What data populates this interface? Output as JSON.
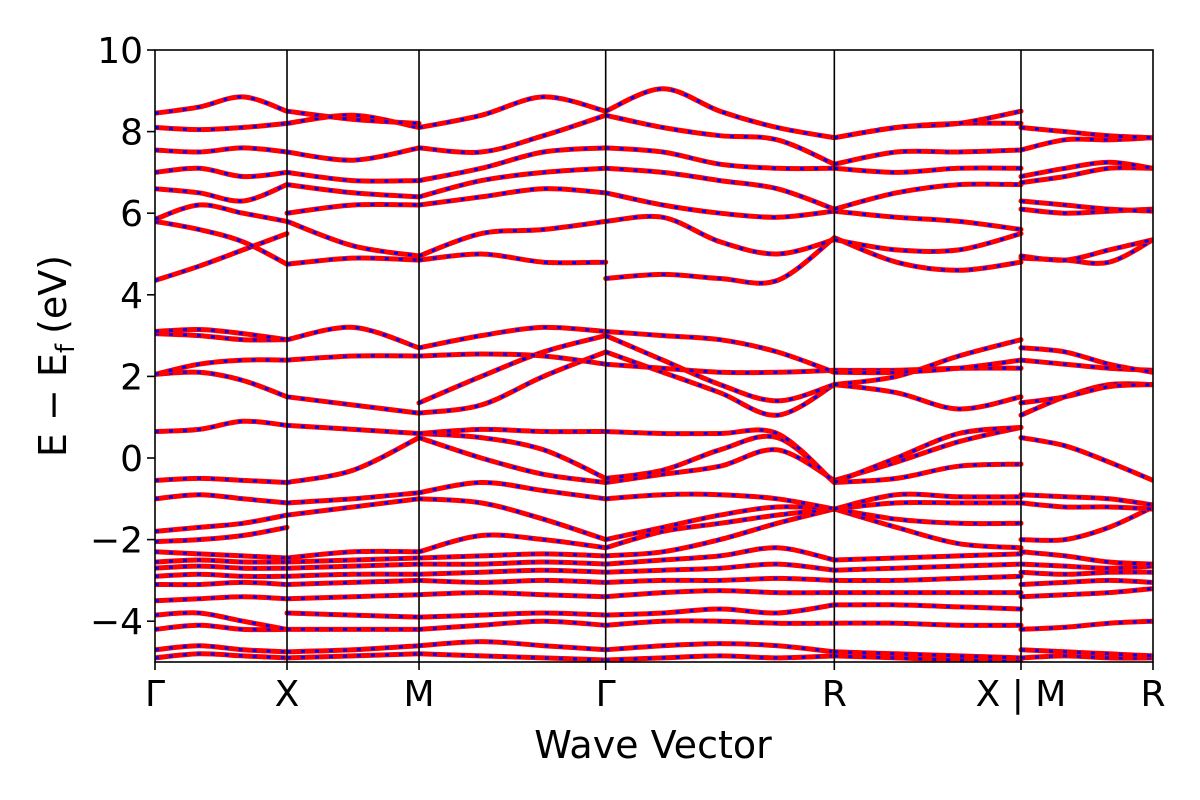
{
  "chart_data": {
    "type": "line",
    "xlabel": "Wave Vector",
    "ylabel_main": "E − E",
    "ylabel_sub": "f",
    "ylabel_unit": "(eV)",
    "ylim": [
      -5,
      10
    ],
    "yticks": [
      -4,
      -2,
      0,
      2,
      4,
      6,
      8,
      10
    ],
    "ytick_labels": [
      "−4",
      "−2",
      "0",
      "2",
      "4",
      "6",
      "8",
      "10"
    ],
    "grid": false,
    "kpoints": [
      {
        "label": "Γ",
        "x": 0.0
      },
      {
        "label": "X",
        "x": 0.5
      },
      {
        "label": "M",
        "x": 1.0
      },
      {
        "label": "Γ",
        "x": 1.707
      },
      {
        "label": "R",
        "x": 2.573
      },
      {
        "label": "X | M",
        "x": 3.28
      },
      {
        "label": "R",
        "x": 3.78
      }
    ],
    "x_range": [
      0,
      3.78
    ],
    "series_colors": {
      "red": "#ff0000",
      "blue": "#0000ff"
    },
    "segments": [
      {
        "x0": 0.0,
        "x1": 0.5,
        "bands": [
          [
            -4.9,
            -4.8,
            -4.85,
            -4.9
          ],
          [
            -4.7,
            -4.6,
            -4.7,
            -4.75
          ],
          [
            -4.2,
            -4.1,
            -4.2,
            -4.2
          ],
          [
            -3.85,
            -3.8,
            -4.0,
            -4.2
          ],
          [
            -3.5,
            -3.45,
            -3.4,
            -3.45
          ],
          [
            -3.1,
            -3.1,
            -3.05,
            -3.1
          ],
          [
            -2.9,
            -2.85,
            -2.9,
            -2.9
          ],
          [
            -2.7,
            -2.65,
            -2.7,
            -2.7
          ],
          [
            -2.55,
            -2.5,
            -2.55,
            -2.55
          ],
          [
            -2.3,
            -2.35,
            -2.4,
            -2.45
          ],
          [
            -2.05,
            -2.0,
            -1.9,
            -1.7
          ],
          [
            -1.8,
            -1.7,
            -1.6,
            -1.4
          ],
          [
            -1.0,
            -0.9,
            -1.0,
            -1.1
          ],
          [
            -0.55,
            -0.5,
            -0.55,
            -0.6
          ],
          [
            0.65,
            0.7,
            0.9,
            0.8
          ],
          [
            2.05,
            2.1,
            1.9,
            1.5
          ],
          [
            2.05,
            2.3,
            2.4,
            2.4
          ],
          [
            3.05,
            3.0,
            2.9,
            2.9
          ],
          [
            3.1,
            3.15,
            3.05,
            2.9
          ],
          [
            4.35,
            4.7,
            5.1,
            5.5
          ],
          [
            5.8,
            5.6,
            5.3,
            4.75
          ],
          [
            5.85,
            6.2,
            6.0,
            5.8
          ],
          [
            6.6,
            6.5,
            6.3,
            6.7
          ],
          [
            7.0,
            7.1,
            6.9,
            7.0
          ],
          [
            7.55,
            7.5,
            7.6,
            7.5
          ],
          [
            8.1,
            8.05,
            8.1,
            8.2
          ],
          [
            8.45,
            8.6,
            8.85,
            8.5
          ]
        ]
      },
      {
        "x0": 0.5,
        "x1": 1.0,
        "bands": [
          [
            -4.9,
            -4.85,
            -4.8
          ],
          [
            -4.75,
            -4.7,
            -4.6
          ],
          [
            -4.2,
            -4.2,
            -4.2
          ],
          [
            -3.8,
            -3.85,
            -3.9
          ],
          [
            -3.45,
            -3.4,
            -3.35
          ],
          [
            -3.1,
            -3.05,
            -3.0
          ],
          [
            -2.9,
            -2.85,
            -2.85
          ],
          [
            -2.7,
            -2.65,
            -2.6
          ],
          [
            -2.55,
            -2.5,
            -2.45
          ],
          [
            -2.45,
            -2.3,
            -2.3
          ],
          [
            -1.4,
            -1.2,
            -1.0
          ],
          [
            -1.1,
            -1.0,
            -0.85
          ],
          [
            -0.6,
            -0.3,
            0.5
          ],
          [
            0.8,
            0.7,
            0.6
          ],
          [
            1.5,
            1.3,
            1.1
          ],
          [
            2.4,
            2.5,
            2.5
          ],
          [
            2.9,
            3.2,
            2.7
          ],
          [
            4.75,
            4.9,
            4.85
          ],
          [
            5.8,
            5.2,
            4.95
          ],
          [
            6.0,
            6.2,
            6.2
          ],
          [
            6.7,
            6.5,
            6.4
          ],
          [
            7.0,
            6.8,
            6.8
          ],
          [
            7.5,
            7.3,
            7.6
          ],
          [
            8.2,
            8.4,
            8.1
          ],
          [
            8.5,
            8.3,
            8.2
          ]
        ]
      },
      {
        "x0": 1.0,
        "x1": 1.707,
        "bands": [
          [
            -4.8,
            -4.85,
            -4.9,
            -4.95
          ],
          [
            -4.6,
            -4.5,
            -4.6,
            -4.7
          ],
          [
            -4.2,
            -4.1,
            -4.0,
            -4.1
          ],
          [
            -3.9,
            -3.85,
            -3.8,
            -3.85
          ],
          [
            -3.35,
            -3.3,
            -3.35,
            -3.4
          ],
          [
            -3.0,
            -3.05,
            -3.0,
            -3.05
          ],
          [
            -2.85,
            -2.8,
            -2.75,
            -2.8
          ],
          [
            -2.6,
            -2.6,
            -2.55,
            -2.6
          ],
          [
            -2.45,
            -2.4,
            -2.35,
            -2.4
          ],
          [
            -2.3,
            -1.9,
            -2.0,
            -2.2
          ],
          [
            -1.0,
            -1.1,
            -1.5,
            -2.0
          ],
          [
            -0.85,
            -0.6,
            -0.8,
            -1.0
          ],
          [
            0.5,
            0.0,
            -0.4,
            -0.6
          ],
          [
            0.6,
            0.5,
            0.2,
            -0.5
          ],
          [
            0.6,
            0.7,
            0.65,
            0.65
          ],
          [
            1.1,
            1.3,
            2.0,
            2.6
          ],
          [
            1.35,
            2.0,
            2.6,
            3.0
          ],
          [
            2.5,
            2.55,
            2.5,
            2.3
          ],
          [
            2.7,
            3.0,
            3.2,
            3.1
          ],
          [
            4.85,
            5.0,
            4.8,
            4.8
          ],
          [
            4.95,
            5.5,
            5.6,
            5.8
          ],
          [
            6.2,
            6.4,
            6.6,
            6.5
          ],
          [
            6.4,
            6.8,
            7.0,
            7.1
          ],
          [
            6.8,
            7.1,
            7.5,
            7.6
          ],
          [
            7.6,
            7.5,
            7.9,
            8.4
          ],
          [
            8.1,
            8.4,
            8.85,
            8.5
          ]
        ]
      },
      {
        "x0": 1.707,
        "x1": 2.573,
        "bands": [
          [
            -4.95,
            -4.9,
            -4.85,
            -4.9,
            -4.85
          ],
          [
            -4.7,
            -4.6,
            -4.55,
            -4.6,
            -4.75
          ],
          [
            -4.1,
            -4.0,
            -4.0,
            -4.05,
            -4.05
          ],
          [
            -3.85,
            -3.8,
            -3.7,
            -3.8,
            -3.6
          ],
          [
            -3.4,
            -3.3,
            -3.25,
            -3.3,
            -3.3
          ],
          [
            -3.05,
            -3.0,
            -3.0,
            -2.95,
            -3.0
          ],
          [
            -2.8,
            -2.75,
            -2.7,
            -2.6,
            -2.75
          ],
          [
            -2.6,
            -2.5,
            -2.4,
            -2.2,
            -2.5
          ],
          [
            -2.4,
            -2.3,
            -2.0,
            -1.6,
            -1.25
          ],
          [
            -2.2,
            -1.8,
            -1.6,
            -1.4,
            -1.25
          ],
          [
            -2.0,
            -1.7,
            -1.4,
            -1.2,
            -1.25
          ],
          [
            -1.0,
            -0.9,
            -0.9,
            -1.0,
            -1.25
          ],
          [
            -0.6,
            -0.4,
            -0.2,
            0.2,
            -0.55
          ],
          [
            -0.5,
            -0.3,
            0.2,
            0.5,
            -0.6
          ],
          [
            0.65,
            0.6,
            0.6,
            0.6,
            -0.6
          ],
          [
            2.6,
            2.1,
            1.6,
            1.05,
            1.8
          ],
          [
            3.0,
            2.4,
            1.8,
            1.4,
            1.8
          ],
          [
            2.3,
            2.2,
            2.1,
            2.1,
            2.15
          ],
          [
            3.1,
            3.0,
            2.9,
            2.6,
            2.1
          ],
          [
            4.4,
            4.5,
            4.4,
            4.35,
            5.4
          ],
          [
            5.8,
            5.9,
            5.3,
            5.0,
            5.35
          ],
          [
            6.5,
            6.2,
            6.0,
            5.9,
            6.05
          ],
          [
            7.1,
            7.0,
            6.8,
            6.6,
            6.1
          ],
          [
            7.6,
            7.5,
            7.2,
            7.1,
            7.1
          ],
          [
            8.4,
            8.1,
            7.9,
            7.8,
            7.2
          ],
          [
            8.5,
            9.05,
            8.5,
            8.1,
            7.85
          ]
        ]
      },
      {
        "x0": 2.573,
        "x1": 3.28,
        "bands": [
          [
            -4.85,
            -4.9,
            -4.95,
            -4.95
          ],
          [
            -4.75,
            -4.8,
            -4.85,
            -4.9
          ],
          [
            -4.05,
            -4.05,
            -4.1,
            -4.1
          ],
          [
            -3.6,
            -3.6,
            -3.65,
            -3.7
          ],
          [
            -3.3,
            -3.3,
            -3.3,
            -3.3
          ],
          [
            -3.0,
            -3.0,
            -2.95,
            -2.9
          ],
          [
            -2.75,
            -2.7,
            -2.65,
            -2.6
          ],
          [
            -2.5,
            -2.45,
            -2.4,
            -2.35
          ],
          [
            -1.25,
            -1.7,
            -2.1,
            -2.2
          ],
          [
            -1.25,
            -1.5,
            -1.6,
            -1.6
          ],
          [
            -1.25,
            -1.1,
            -1.1,
            -1.1
          ],
          [
            -1.25,
            -0.9,
            -0.95,
            -0.95
          ],
          [
            -0.55,
            -0.1,
            0.4,
            0.75
          ],
          [
            -0.6,
            -0.5,
            -0.2,
            -0.15
          ],
          [
            -0.6,
            0.0,
            0.6,
            0.75
          ],
          [
            1.8,
            1.6,
            1.2,
            1.5
          ],
          [
            1.8,
            2.0,
            2.5,
            2.9
          ],
          [
            2.15,
            2.15,
            2.2,
            2.2
          ],
          [
            2.1,
            2.1,
            2.2,
            2.4
          ],
          [
            5.4,
            4.8,
            4.6,
            4.8
          ],
          [
            5.35,
            5.1,
            5.1,
            5.5
          ],
          [
            6.05,
            5.9,
            5.8,
            5.6
          ],
          [
            6.1,
            6.5,
            6.7,
            6.7
          ],
          [
            7.1,
            7.0,
            7.1,
            7.1
          ],
          [
            7.2,
            7.5,
            7.5,
            7.55
          ],
          [
            7.85,
            8.1,
            8.2,
            8.2
          ],
          [
            7.85,
            8.1,
            8.2,
            8.5
          ]
        ]
      },
      {
        "x0": 3.28,
        "x1": 3.78,
        "bands": [
          [
            -4.9,
            -4.85,
            -4.9,
            -4.9
          ],
          [
            -4.7,
            -4.75,
            -4.8,
            -4.85
          ],
          [
            -4.2,
            -4.15,
            -4.05,
            -4.0
          ],
          [
            -3.4,
            -3.35,
            -3.3,
            -3.2
          ],
          [
            -3.1,
            -3.05,
            -3.0,
            -3.05
          ],
          [
            -2.8,
            -2.85,
            -2.8,
            -2.8
          ],
          [
            -2.6,
            -2.65,
            -2.7,
            -2.65
          ],
          [
            -2.3,
            -2.4,
            -2.55,
            -2.6
          ],
          [
            -2.0,
            -2.0,
            -1.7,
            -1.2
          ],
          [
            -1.1,
            -1.2,
            -1.2,
            -1.25
          ],
          [
            -0.9,
            -0.95,
            -1.0,
            -1.15
          ],
          [
            0.5,
            0.3,
            -0.1,
            -0.55
          ],
          [
            1.05,
            1.5,
            1.8,
            1.8
          ],
          [
            1.35,
            1.5,
            1.75,
            1.8
          ],
          [
            2.4,
            2.3,
            2.2,
            2.15
          ],
          [
            2.7,
            2.6,
            2.3,
            2.1
          ],
          [
            4.9,
            4.85,
            4.8,
            5.35
          ],
          [
            4.95,
            4.85,
            5.1,
            5.35
          ],
          [
            6.1,
            6.0,
            6.05,
            6.1
          ],
          [
            6.3,
            6.2,
            6.1,
            6.05
          ],
          [
            6.75,
            6.9,
            7.1,
            7.1
          ],
          [
            6.9,
            7.1,
            7.25,
            7.1
          ],
          [
            7.55,
            7.8,
            7.8,
            7.85
          ],
          [
            8.1,
            8.0,
            7.9,
            7.85
          ]
        ]
      }
    ]
  }
}
